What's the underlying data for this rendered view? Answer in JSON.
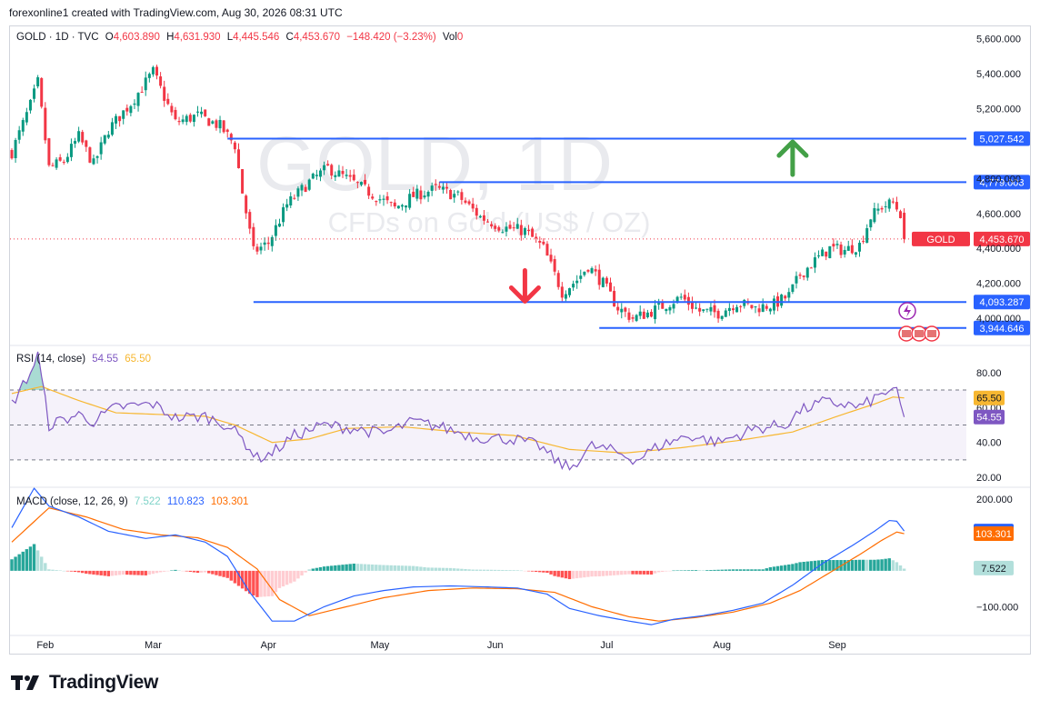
{
  "header": {
    "credit": "forexonline1 created with TradingView.com, Aug 30, 2026 08:31 UTC",
    "symbol": "GOLD · 1D · TVC",
    "o_label": "O",
    "o_value": "4,603.890",
    "h_label": "H",
    "h_value": "4,631.930",
    "l_label": "L",
    "l_value": "4,445.546",
    "c_label": "C",
    "c_value": "4,453.670",
    "change": "−148.420 (−3.23%)",
    "vol_label": "Vol",
    "vol_value": "0"
  },
  "watermark": {
    "title": "GOLD, 1D",
    "subtitle": "CFDs on Gold (US$ / OZ)"
  },
  "brand": {
    "name": "TradingView"
  },
  "colors": {
    "up": "#089981",
    "down": "#f23645",
    "level": "#2962ff",
    "rsi": "#7e57c2",
    "rsi_ma": "#f7b731",
    "macd": "#2962ff",
    "signal": "#ff6d00"
  },
  "chart_data": {
    "type": "candlestick",
    "x_ticks": [
      "Feb",
      "Mar",
      "Apr",
      "May",
      "Jun",
      "Jul",
      "Aug",
      "Sep"
    ],
    "price_ticks": [
      "5,600.000",
      "5,400.000",
      "5,200.000",
      "4,800.000",
      "4,600.000",
      "4,400.000",
      "4,200.000",
      "4,000.000"
    ],
    "price_range": [
      3850,
      5670
    ],
    "anchors": [
      {
        "d": 0,
        "p": 4950
      },
      {
        "d": 5,
        "p": 5220
      },
      {
        "d": 7,
        "p": 5350
      },
      {
        "d": 10,
        "p": 4860
      },
      {
        "d": 14,
        "p": 4900
      },
      {
        "d": 18,
        "p": 5040
      },
      {
        "d": 22,
        "p": 4880
      },
      {
        "d": 26,
        "p": 5080
      },
      {
        "d": 32,
        "p": 5230
      },
      {
        "d": 38,
        "p": 5410
      },
      {
        "d": 44,
        "p": 5120
      },
      {
        "d": 50,
        "p": 5160
      },
      {
        "d": 56,
        "p": 5100
      },
      {
        "d": 60,
        "p": 4990
      },
      {
        "d": 62,
        "p": 4720
      },
      {
        "d": 65,
        "p": 4380
      },
      {
        "d": 69,
        "p": 4430
      },
      {
        "d": 74,
        "p": 4650
      },
      {
        "d": 80,
        "p": 4780
      },
      {
        "d": 85,
        "p": 4860
      },
      {
        "d": 90,
        "p": 4800
      },
      {
        "d": 97,
        "p": 4710
      },
      {
        "d": 103,
        "p": 4630
      },
      {
        "d": 108,
        "p": 4700
      },
      {
        "d": 114,
        "p": 4740
      },
      {
        "d": 120,
        "p": 4700
      },
      {
        "d": 126,
        "p": 4580
      },
      {
        "d": 132,
        "p": 4520
      },
      {
        "d": 138,
        "p": 4500
      },
      {
        "d": 143,
        "p": 4400
      },
      {
        "d": 148,
        "p": 4150
      },
      {
        "d": 152,
        "p": 4220
      },
      {
        "d": 155,
        "p": 4300
      },
      {
        "d": 159,
        "p": 4200
      },
      {
        "d": 163,
        "p": 4060
      },
      {
        "d": 167,
        "p": 4000
      },
      {
        "d": 171,
        "p": 4030
      },
      {
        "d": 176,
        "p": 4080
      },
      {
        "d": 180,
        "p": 4120
      },
      {
        "d": 185,
        "p": 4040
      },
      {
        "d": 190,
        "p": 4030
      },
      {
        "d": 195,
        "p": 4090
      },
      {
        "d": 200,
        "p": 4060
      },
      {
        "d": 205,
        "p": 4080
      },
      {
        "d": 209,
        "p": 4130
      },
      {
        "d": 212,
        "p": 4250
      },
      {
        "d": 216,
        "p": 4330
      },
      {
        "d": 220,
        "p": 4400
      },
      {
        "d": 224,
        "p": 4390
      },
      {
        "d": 228,
        "p": 4420
      },
      {
        "d": 231,
        "p": 4580
      },
      {
        "d": 234,
        "p": 4640
      },
      {
        "d": 237,
        "p": 4660
      },
      {
        "d": 239,
        "p": 4600
      },
      {
        "d": 240,
        "p": 4454
      }
    ],
    "levels": [
      {
        "value": 5027.542,
        "label": "5,027.542",
        "from_day": 58
      },
      {
        "value": 4779.003,
        "label": "4,779.003",
        "from_day": 115
      },
      {
        "value": 4093.287,
        "label": "4,093.287",
        "from_day": 65
      },
      {
        "value": 3944.646,
        "label": "3,944.646",
        "from_day": 158
      }
    ],
    "last_price": {
      "value": 4453.67,
      "label": "4,453.670",
      "tag": "GOLD"
    },
    "arrow_up": {
      "day": 210,
      "price": 4900
    },
    "arrow_down": {
      "day": 138,
      "price": 4180
    },
    "rsi": {
      "legend": "RSI (14, close)",
      "value": "54.55",
      "ma_value": "65.50",
      "ticks": [
        "80.00",
        "60.00",
        "40.00",
        "20.00"
      ],
      "range": [
        18,
        95
      ],
      "anchors": [
        {
          "d": 0,
          "p": 62
        },
        {
          "d": 5,
          "p": 80
        },
        {
          "d": 7,
          "p": 90
        },
        {
          "d": 10,
          "p": 50
        },
        {
          "d": 18,
          "p": 56
        },
        {
          "d": 22,
          "p": 52
        },
        {
          "d": 28,
          "p": 60
        },
        {
          "d": 38,
          "p": 62
        },
        {
          "d": 44,
          "p": 54
        },
        {
          "d": 52,
          "p": 55
        },
        {
          "d": 58,
          "p": 50
        },
        {
          "d": 62,
          "p": 42
        },
        {
          "d": 66,
          "p": 31
        },
        {
          "d": 70,
          "p": 34
        },
        {
          "d": 76,
          "p": 44
        },
        {
          "d": 84,
          "p": 50
        },
        {
          "d": 92,
          "p": 48
        },
        {
          "d": 100,
          "p": 45
        },
        {
          "d": 108,
          "p": 52
        },
        {
          "d": 115,
          "p": 49
        },
        {
          "d": 125,
          "p": 43
        },
        {
          "d": 135,
          "p": 42
        },
        {
          "d": 142,
          "p": 38
        },
        {
          "d": 146,
          "p": 30
        },
        {
          "d": 150,
          "p": 25
        },
        {
          "d": 156,
          "p": 38
        },
        {
          "d": 162,
          "p": 35
        },
        {
          "d": 168,
          "p": 30
        },
        {
          "d": 174,
          "p": 38
        },
        {
          "d": 182,
          "p": 44
        },
        {
          "d": 190,
          "p": 40
        },
        {
          "d": 200,
          "p": 48
        },
        {
          "d": 208,
          "p": 50
        },
        {
          "d": 212,
          "p": 58
        },
        {
          "d": 218,
          "p": 63
        },
        {
          "d": 224,
          "p": 62
        },
        {
          "d": 228,
          "p": 60
        },
        {
          "d": 232,
          "p": 65
        },
        {
          "d": 236,
          "p": 70
        },
        {
          "d": 238,
          "p": 68
        },
        {
          "d": 240,
          "p": 54.55
        }
      ],
      "ma_anchors": [
        {
          "d": 0,
          "p": 68
        },
        {
          "d": 8,
          "p": 72
        },
        {
          "d": 18,
          "p": 64
        },
        {
          "d": 28,
          "p": 57
        },
        {
          "d": 40,
          "p": 56
        },
        {
          "d": 52,
          "p": 55
        },
        {
          "d": 60,
          "p": 50
        },
        {
          "d": 70,
          "p": 40
        },
        {
          "d": 80,
          "p": 42
        },
        {
          "d": 90,
          "p": 48
        },
        {
          "d": 105,
          "p": 49
        },
        {
          "d": 120,
          "p": 46
        },
        {
          "d": 135,
          "p": 44
        },
        {
          "d": 150,
          "p": 36
        },
        {
          "d": 165,
          "p": 34
        },
        {
          "d": 180,
          "p": 37
        },
        {
          "d": 195,
          "p": 41
        },
        {
          "d": 210,
          "p": 46
        },
        {
          "d": 222,
          "p": 55
        },
        {
          "d": 232,
          "p": 62
        },
        {
          "d": 237,
          "p": 66
        },
        {
          "d": 240,
          "p": 65.5
        }
      ]
    },
    "macd": {
      "legend": "MACD (close, 12, 26, 9)",
      "hist_value": "7.522",
      "macd_value": "110.823",
      "signal_value": "103.301",
      "ticks": [
        "200.000",
        "−100.000"
      ],
      "range": [
        -180,
        230
      ],
      "macd_anchors": [
        {
          "d": 0,
          "p": 120
        },
        {
          "d": 6,
          "p": 230
        },
        {
          "d": 10,
          "p": 180
        },
        {
          "d": 18,
          "p": 150
        },
        {
          "d": 26,
          "p": 110
        },
        {
          "d": 36,
          "p": 90
        },
        {
          "d": 44,
          "p": 100
        },
        {
          "d": 52,
          "p": 80
        },
        {
          "d": 58,
          "p": 40
        },
        {
          "d": 64,
          "p": -60
        },
        {
          "d": 70,
          "p": -140
        },
        {
          "d": 76,
          "p": -140
        },
        {
          "d": 84,
          "p": -100
        },
        {
          "d": 92,
          "p": -70
        },
        {
          "d": 100,
          "p": -55
        },
        {
          "d": 108,
          "p": -45
        },
        {
          "d": 118,
          "p": -42
        },
        {
          "d": 128,
          "p": -45
        },
        {
          "d": 136,
          "p": -48
        },
        {
          "d": 144,
          "p": -65
        },
        {
          "d": 150,
          "p": -105
        },
        {
          "d": 158,
          "p": -125
        },
        {
          "d": 166,
          "p": -140
        },
        {
          "d": 172,
          "p": -150
        },
        {
          "d": 178,
          "p": -135
        },
        {
          "d": 186,
          "p": -125
        },
        {
          "d": 194,
          "p": -110
        },
        {
          "d": 202,
          "p": -90
        },
        {
          "d": 210,
          "p": -40
        },
        {
          "d": 218,
          "p": 20
        },
        {
          "d": 226,
          "p": 70
        },
        {
          "d": 232,
          "p": 110
        },
        {
          "d": 236,
          "p": 140
        },
        {
          "d": 238,
          "p": 138
        },
        {
          "d": 240,
          "p": 110.8
        }
      ],
      "signal_anchors": [
        {
          "d": 0,
          "p": 80
        },
        {
          "d": 10,
          "p": 175
        },
        {
          "d": 20,
          "p": 150
        },
        {
          "d": 30,
          "p": 115
        },
        {
          "d": 40,
          "p": 100
        },
        {
          "d": 50,
          "p": 92
        },
        {
          "d": 58,
          "p": 65
        },
        {
          "d": 66,
          "p": 5
        },
        {
          "d": 72,
          "p": -80
        },
        {
          "d": 80,
          "p": -125
        },
        {
          "d": 90,
          "p": -100
        },
        {
          "d": 100,
          "p": -75
        },
        {
          "d": 112,
          "p": -55
        },
        {
          "d": 124,
          "p": -48
        },
        {
          "d": 136,
          "p": -50
        },
        {
          "d": 146,
          "p": -60
        },
        {
          "d": 156,
          "p": -100
        },
        {
          "d": 166,
          "p": -128
        },
        {
          "d": 174,
          "p": -140
        },
        {
          "d": 184,
          "p": -130
        },
        {
          "d": 194,
          "p": -115
        },
        {
          "d": 204,
          "p": -90
        },
        {
          "d": 212,
          "p": -55
        },
        {
          "d": 220,
          "p": -5
        },
        {
          "d": 228,
          "p": 45
        },
        {
          "d": 234,
          "p": 85
        },
        {
          "d": 238,
          "p": 108
        },
        {
          "d": 240,
          "p": 103.3
        }
      ]
    }
  }
}
